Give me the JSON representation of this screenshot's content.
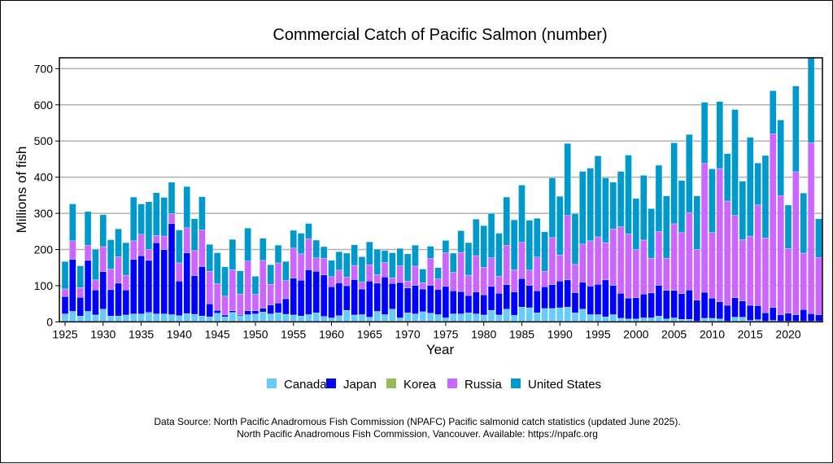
{
  "chart_data": {
    "type": "bar",
    "stacked": true,
    "title": "Commercial Catch of Pacific Salmon (number)",
    "xlabel": "Year",
    "ylabel": "Millions of fish",
    "ylim": [
      0,
      730
    ],
    "yticks": [
      0,
      100,
      200,
      300,
      400,
      500,
      600,
      700
    ],
    "xticks": [
      1925,
      1930,
      1935,
      1940,
      1945,
      1950,
      1955,
      1960,
      1965,
      1970,
      1975,
      1980,
      1985,
      1990,
      1995,
      2000,
      2005,
      2010,
      2015,
      2020
    ],
    "grid": "horizontal",
    "legend_position": "bottom",
    "x_start": 1925,
    "x_end": 2024,
    "series": [
      {
        "name": "Canada",
        "color": "#66ccff",
        "values": [
          22,
          29,
          16,
          29,
          19,
          35,
          16,
          16,
          19,
          22,
          22,
          26,
          22,
          22,
          20,
          17,
          23,
          21,
          16,
          14,
          24,
          14,
          26,
          17,
          20,
          22,
          27,
          22,
          25,
          21,
          19,
          16,
          20,
          25,
          15,
          11,
          17,
          32,
          19,
          20,
          13,
          29,
          20,
          35,
          11,
          25,
          22,
          28,
          24,
          20,
          11,
          22,
          22,
          25,
          22,
          19,
          32,
          19,
          35,
          18,
          41,
          39,
          25,
          37,
          37,
          39,
          41,
          25,
          35,
          20,
          20,
          14,
          20,
          10,
          8,
          8,
          11,
          11,
          16,
          8,
          11,
          7,
          7,
          2,
          10,
          10,
          8,
          2,
          13,
          13,
          4,
          6,
          2,
          4,
          2,
          2,
          2,
          2,
          2,
          2
        ]
      },
      {
        "name": "Japan",
        "color": "#0000ff",
        "values": [
          48,
          144,
          52,
          141,
          69,
          104,
          73,
          91,
          69,
          151,
          161,
          144,
          197,
          178,
          252,
          96,
          168,
          107,
          137,
          36,
          8,
          5,
          5,
          3,
          11,
          9,
          11,
          25,
          27,
          43,
          102,
          99,
          124,
          115,
          115,
          86,
          91,
          68,
          98,
          71,
          100,
          78,
          104,
          71,
          98,
          69,
          79,
          63,
          77,
          70,
          87,
          64,
          62,
          48,
          61,
          56,
          66,
          60,
          68,
          65,
          79,
          62,
          61,
          60,
          66,
          74,
          75,
          56,
          75,
          79,
          84,
          102,
          81,
          69,
          58,
          59,
          66,
          69,
          85,
          79,
          76,
          71,
          81,
          58,
          72,
          56,
          48,
          44,
          54,
          45,
          42,
          39,
          23,
          36,
          18,
          22,
          18,
          32,
          21,
          18
        ]
      },
      {
        "name": "Korea",
        "color": "#99bb55",
        "values": [
          0,
          0,
          0,
          0,
          0,
          0,
          0,
          0,
          0,
          0,
          0,
          0,
          0,
          0,
          0,
          0,
          0,
          0,
          0,
          0,
          0,
          0,
          0,
          0,
          0,
          0,
          0,
          0,
          0,
          0,
          0,
          0,
          0,
          0,
          0,
          0,
          0,
          0,
          0,
          0,
          0,
          0,
          0,
          0,
          0,
          0,
          0,
          0,
          0,
          0,
          0,
          0,
          0,
          0,
          0,
          0,
          0,
          0,
          0,
          0,
          0,
          0,
          0,
          0,
          0,
          0,
          0,
          0,
          0,
          0,
          0,
          0,
          0,
          0,
          0,
          0,
          0,
          0,
          0,
          0,
          0,
          0,
          0,
          0,
          0,
          0,
          0,
          0,
          0,
          0,
          0,
          0,
          0,
          0,
          0,
          0,
          0,
          0,
          0,
          0
        ]
      },
      {
        "name": "Russia",
        "color": "#cc66ff",
        "values": [
          21,
          51,
          27,
          42,
          28,
          69,
          57,
          73,
          41,
          51,
          59,
          30,
          20,
          37,
          27,
          50,
          69,
          69,
          101,
          90,
          74,
          52,
          113,
          57,
          137,
          45,
          132,
          57,
          111,
          50,
          83,
          73,
          86,
          37,
          46,
          28,
          35,
          24,
          39,
          19,
          45,
          24,
          40,
          16,
          46,
          19,
          53,
          17,
          75,
          29,
          93,
          51,
          108,
          56,
          100,
          76,
          79,
          47,
          109,
          61,
          100,
          42,
          93,
          43,
          130,
          72,
          178,
          78,
          105,
          125,
          131,
          103,
          156,
          184,
          177,
          133,
          149,
          96,
          149,
          89,
          184,
          169,
          214,
          140,
          356,
          181,
          368,
          288,
          227,
          169,
          191,
          278,
          207,
          480,
          329,
          179,
          395,
          156,
          472,
          158
        ]
      },
      {
        "name": "United States",
        "color": "#0099cc",
        "values": [
          76,
          102,
          60,
          93,
          85,
          88,
          81,
          77,
          90,
          121,
          84,
          132,
          118,
          107,
          87,
          91,
          114,
          88,
          92,
          74,
          85,
          81,
          84,
          64,
          91,
          50,
          61,
          54,
          49,
          53,
          49,
          57,
          42,
          49,
          32,
          45,
          51,
          66,
          57,
          70,
          63,
          70,
          33,
          69,
          48,
          75,
          58,
          38,
          33,
          31,
          34,
          53,
          60,
          90,
          101,
          115,
          123,
          119,
          133,
          138,
          158,
          138,
          107,
          109,
          165,
          162,
          199,
          140,
          201,
          201,
          224,
          179,
          129,
          153,
          218,
          141,
          179,
          137,
          183,
          172,
          224,
          144,
          216,
          148,
          169,
          176,
          185,
          131,
          293,
          162,
          273,
          116,
          228,
          119,
          209,
          120,
          237,
          166,
          235,
          107
        ]
      }
    ]
  },
  "footer": {
    "line1": "Data Source: North Pacific Anadromous Fish Commission (NPAFC) Pacific salmonid catch statistics (updated June 2025).",
    "line2": "North Pacific Anadromous Fish Commission, Vancouver. Available: https://npafc.org"
  }
}
